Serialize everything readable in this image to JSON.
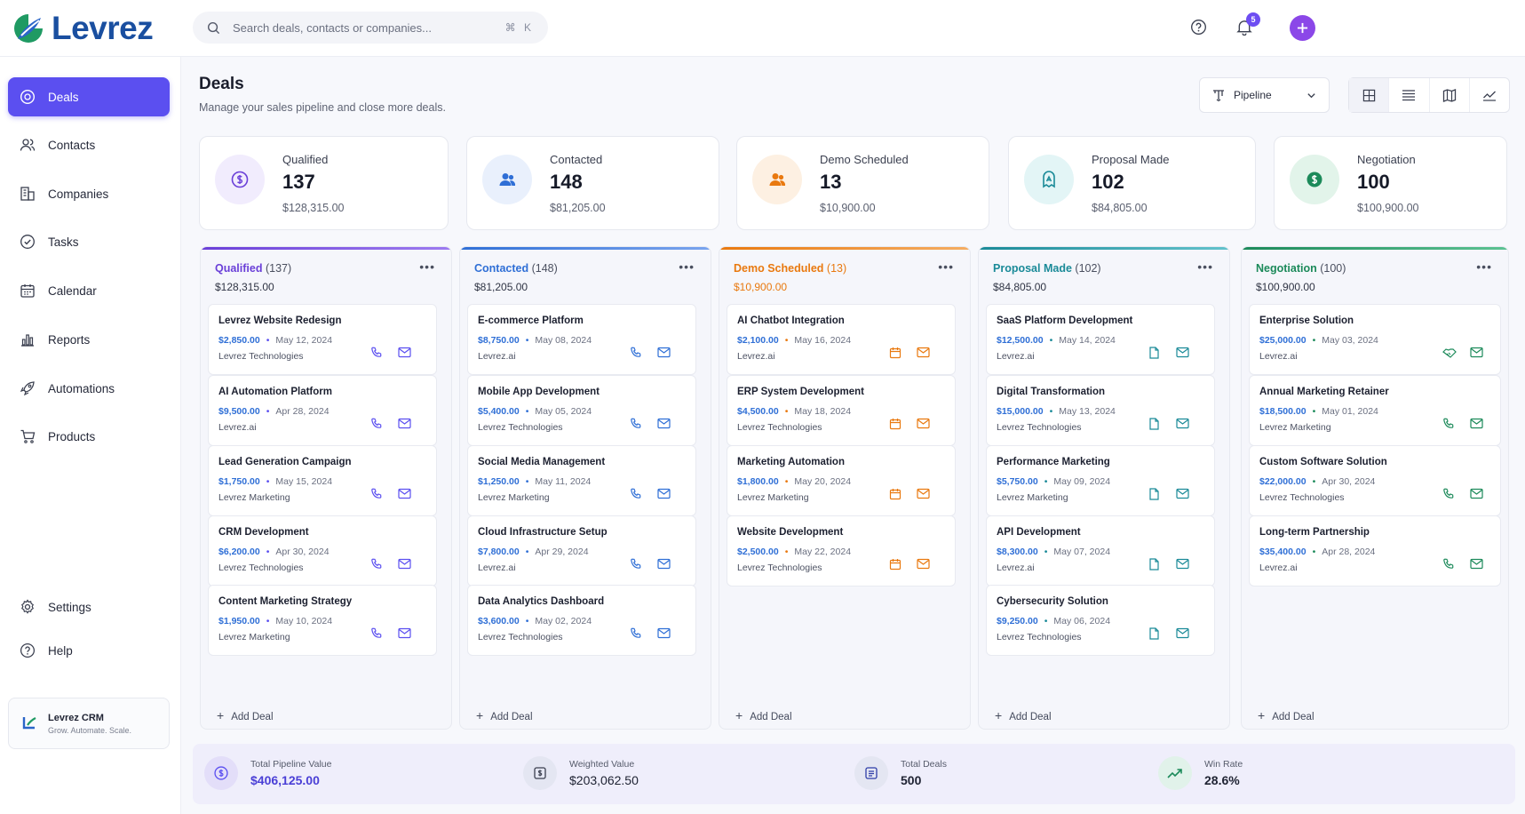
{
  "app": {
    "name": "Levrez"
  },
  "search": {
    "placeholder": "Search deals, contacts or companies...",
    "shortcut": "⌘ K"
  },
  "notifications": {
    "count": "5"
  },
  "sidebar": {
    "items": [
      {
        "label": "Deals",
        "icon": "dollar-icon",
        "active": true
      },
      {
        "label": "Contacts",
        "icon": "users-icon"
      },
      {
        "label": "Companies",
        "icon": "building-icon"
      },
      {
        "label": "Tasks",
        "icon": "check-circle-icon"
      },
      {
        "label": "Calendar",
        "icon": "calendar-icon"
      },
      {
        "label": "Reports",
        "icon": "bar-chart-icon"
      },
      {
        "label": "Automations",
        "icon": "rocket-icon"
      },
      {
        "label": "Products",
        "icon": "cart-icon"
      }
    ],
    "bottom": [
      {
        "label": "Settings",
        "icon": "gear-icon"
      },
      {
        "label": "Help",
        "icon": "help-icon"
      }
    ],
    "brand_card": {
      "title": "Levrez CRM",
      "subtitle": "Grow. Automate. Scale."
    }
  },
  "header": {
    "title": "Deals",
    "subtitle": "Manage your sales pipeline and close more deals.",
    "view_select": "Pipeline"
  },
  "colors": {
    "accent": "#5b4ff0",
    "qualified": "#6a3fd8",
    "contacted": "#2f6fd6",
    "demo": "#e9790f",
    "proposal": "#1a8a98",
    "negotiation": "#1c8a5a"
  },
  "stats": [
    {
      "label": "Qualified",
      "count": "137",
      "amount": "$128,315.00"
    },
    {
      "label": "Contacted",
      "count": "148",
      "amount": "$81,205.00"
    },
    {
      "label": "Demo Scheduled",
      "count": "13",
      "amount": "$10,900.00"
    },
    {
      "label": "Proposal Made",
      "count": "102",
      "amount": "$84,805.00"
    },
    {
      "label": "Negotiation",
      "count": "100",
      "amount": "$100,900.00"
    }
  ],
  "columns": [
    {
      "name": "Qualified",
      "count": "(137)",
      "total": "$128,315.00",
      "add_label": "Add Deal",
      "deals": [
        {
          "title": "Levrez Website Redesign",
          "value": "$2,850.00",
          "date": "May 12, 2024",
          "company": "Levrez Technologies",
          "icons": [
            "phone-icon",
            "mail-icon"
          ]
        },
        {
          "title": "AI Automation Platform",
          "value": "$9,500.00",
          "date": "Apr 28, 2024",
          "company": "Levrez.ai",
          "icons": [
            "phone-icon",
            "mail-icon"
          ]
        },
        {
          "title": "Lead Generation Campaign",
          "value": "$1,750.00",
          "date": "May 15, 2024",
          "company": "Levrez Marketing",
          "icons": [
            "phone-icon",
            "mail-icon"
          ]
        },
        {
          "title": "CRM Development",
          "value": "$6,200.00",
          "date": "Apr 30, 2024",
          "company": "Levrez Technologies",
          "icons": [
            "phone-icon",
            "mail-icon"
          ]
        },
        {
          "title": "Content Marketing Strategy",
          "value": "$1,950.00",
          "date": "May 10, 2024",
          "company": "Levrez Marketing",
          "icons": [
            "phone-icon",
            "mail-icon"
          ]
        }
      ]
    },
    {
      "name": "Contacted",
      "count": "(148)",
      "total": "$81,205.00",
      "add_label": "Add Deal",
      "deals": [
        {
          "title": "E-commerce Platform",
          "value": "$8,750.00",
          "date": "May 08, 2024",
          "company": "Levrez.ai",
          "icons": [
            "phone-icon",
            "mail-icon"
          ]
        },
        {
          "title": "Mobile App Development",
          "value": "$5,400.00",
          "date": "May 05, 2024",
          "company": "Levrez Technologies",
          "icons": [
            "phone-icon",
            "mail-icon"
          ]
        },
        {
          "title": "Social Media Management",
          "value": "$1,250.00",
          "date": "May 11, 2024",
          "company": "Levrez Marketing",
          "icons": [
            "phone-icon",
            "mail-icon"
          ]
        },
        {
          "title": "Cloud Infrastructure Setup",
          "value": "$7,800.00",
          "date": "Apr 29, 2024",
          "company": "Levrez.ai",
          "icons": [
            "phone-icon",
            "mail-icon"
          ]
        },
        {
          "title": "Data Analytics Dashboard",
          "value": "$3,600.00",
          "date": "May 02, 2024",
          "company": "Levrez Technologies",
          "icons": [
            "phone-icon",
            "mail-icon"
          ]
        }
      ]
    },
    {
      "name": "Demo Scheduled",
      "count": "(13)",
      "total": "$10,900.00",
      "add_label": "Add Deal",
      "deals": [
        {
          "title": "AI Chatbot Integration",
          "value": "$2,100.00",
          "date": "May 16, 2024",
          "company": "Levrez.ai",
          "icons": [
            "calendar-icon",
            "mail-icon"
          ]
        },
        {
          "title": "ERP System Development",
          "value": "$4,500.00",
          "date": "May 18, 2024",
          "company": "Levrez Technologies",
          "icons": [
            "calendar-icon",
            "mail-icon"
          ]
        },
        {
          "title": "Marketing Automation",
          "value": "$1,800.00",
          "date": "May 20, 2024",
          "company": "Levrez Marketing",
          "icons": [
            "calendar-icon",
            "mail-icon"
          ]
        },
        {
          "title": "Website Development",
          "value": "$2,500.00",
          "date": "May 22, 2024",
          "company": "Levrez Technologies",
          "icons": [
            "calendar-icon",
            "mail-icon"
          ]
        }
      ]
    },
    {
      "name": "Proposal Made",
      "count": "(102)",
      "total": "$84,805.00",
      "add_label": "Add Deal",
      "deals": [
        {
          "title": "SaaS Platform Development",
          "value": "$12,500.00",
          "date": "May 14, 2024",
          "company": "Levrez.ai",
          "icons": [
            "document-icon",
            "mail-icon"
          ]
        },
        {
          "title": "Digital Transformation",
          "value": "$15,000.00",
          "date": "May 13, 2024",
          "company": "Levrez Technologies",
          "icons": [
            "document-icon",
            "mail-icon"
          ]
        },
        {
          "title": "Performance Marketing",
          "value": "$5,750.00",
          "date": "May 09, 2024",
          "company": "Levrez Marketing",
          "icons": [
            "document-icon",
            "mail-icon"
          ]
        },
        {
          "title": "API Development",
          "value": "$8,300.00",
          "date": "May 07, 2024",
          "company": "Levrez.ai",
          "icons": [
            "document-icon",
            "mail-icon"
          ]
        },
        {
          "title": "Cybersecurity Solution",
          "value": "$9,250.00",
          "date": "May 06, 2024",
          "company": "Levrez Technologies",
          "icons": [
            "document-icon",
            "mail-icon"
          ]
        }
      ]
    },
    {
      "name": "Negotiation",
      "count": "(100)",
      "total": "$100,900.00",
      "add_label": "Add Deal",
      "deals": [
        {
          "title": "Enterprise Solution",
          "value": "$25,000.00",
          "date": "May 03, 2024",
          "company": "Levrez.ai",
          "icons": [
            "handshake-icon",
            "mail-icon"
          ]
        },
        {
          "title": "Annual Marketing Retainer",
          "value": "$18,500.00",
          "date": "May 01, 2024",
          "company": "Levrez Marketing",
          "icons": [
            "phone-icon",
            "mail-icon"
          ]
        },
        {
          "title": "Custom Software Solution",
          "value": "$22,000.00",
          "date": "Apr 30, 2024",
          "company": "Levrez Technologies",
          "icons": [
            "phone-icon",
            "mail-icon"
          ]
        },
        {
          "title": "Long-term Partnership",
          "value": "$35,400.00",
          "date": "Apr 28, 2024",
          "company": "Levrez.ai",
          "icons": [
            "phone-icon",
            "mail-icon"
          ]
        }
      ]
    }
  ],
  "footer": [
    {
      "label": "Total Pipeline Value",
      "value": "$406,125.00",
      "icon": "dollar-icon"
    },
    {
      "label": "Weighted Value",
      "value": "$203,062.50",
      "icon": "weighted-value-icon"
    },
    {
      "label": "Total Deals",
      "value": "500",
      "icon": "deals-icon"
    },
    {
      "label": "Win Rate",
      "value": "28.6%",
      "icon": "trend-up-icon"
    }
  ]
}
